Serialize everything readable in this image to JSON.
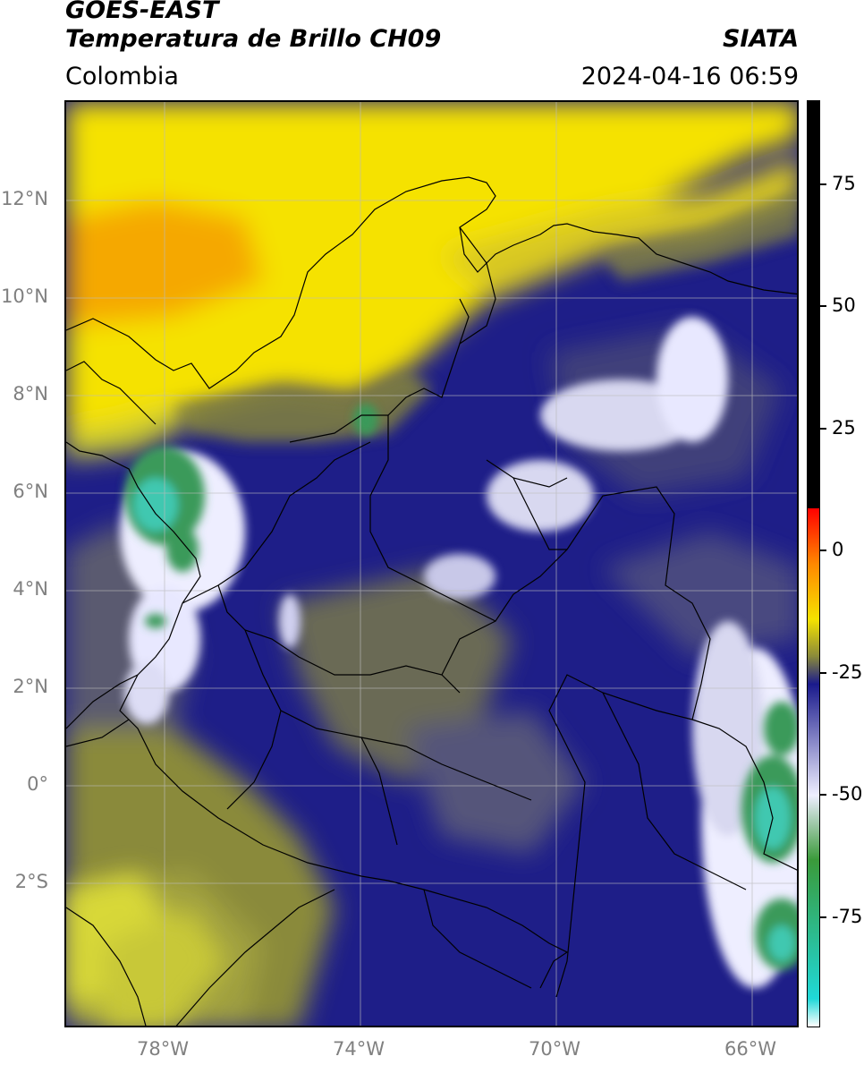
{
  "header": {
    "satellite": "GOES-EAST",
    "product": "Temperatura de Brillo CH09",
    "brand": "SIATA",
    "region": "Colombia",
    "datetime": "2024-04-16 06:59"
  },
  "map": {
    "lat_labels": [
      "12°N",
      "10°N",
      "8°N",
      "6°N",
      "4°N",
      "2°N",
      "0°",
      "2°S"
    ],
    "lon_labels": [
      "78°W",
      "74°W",
      "70°W",
      "66°W"
    ],
    "colors": {
      "warm_yellow": "#f5e200",
      "orange_band": "#f5a800",
      "olive": "#8a8a3a",
      "navy": "#1a1a8c",
      "white_cloud": "#eeeeff",
      "green_core": "#3a9a5a",
      "cyan_core": "#40c8b0",
      "coast_line": "#000000",
      "grid_line": "#bbbbbb"
    }
  },
  "colorbar": {
    "labels": [
      "75",
      "50",
      "25",
      "0",
      "-25",
      "-50",
      "-75"
    ],
    "stops": [
      {
        "color": "#000000",
        "value": "top"
      },
      {
        "color": "#000000",
        "value": "8"
      },
      {
        "color": "#ff0000",
        "value": "8"
      },
      {
        "color": "#ff8800",
        "value": "-3"
      },
      {
        "color": "#f5e200",
        "value": "-13"
      },
      {
        "color": "#8a8a3a",
        "value": "-20"
      },
      {
        "color": "#1a1a8c",
        "value": "-28"
      },
      {
        "color": "#eeeeff",
        "value": "-50"
      },
      {
        "color": "#3a9a3a",
        "value": "-62"
      },
      {
        "color": "#20d8d8",
        "value": "-88"
      },
      {
        "color": "#ffffff",
        "value": "bottom"
      }
    ]
  }
}
